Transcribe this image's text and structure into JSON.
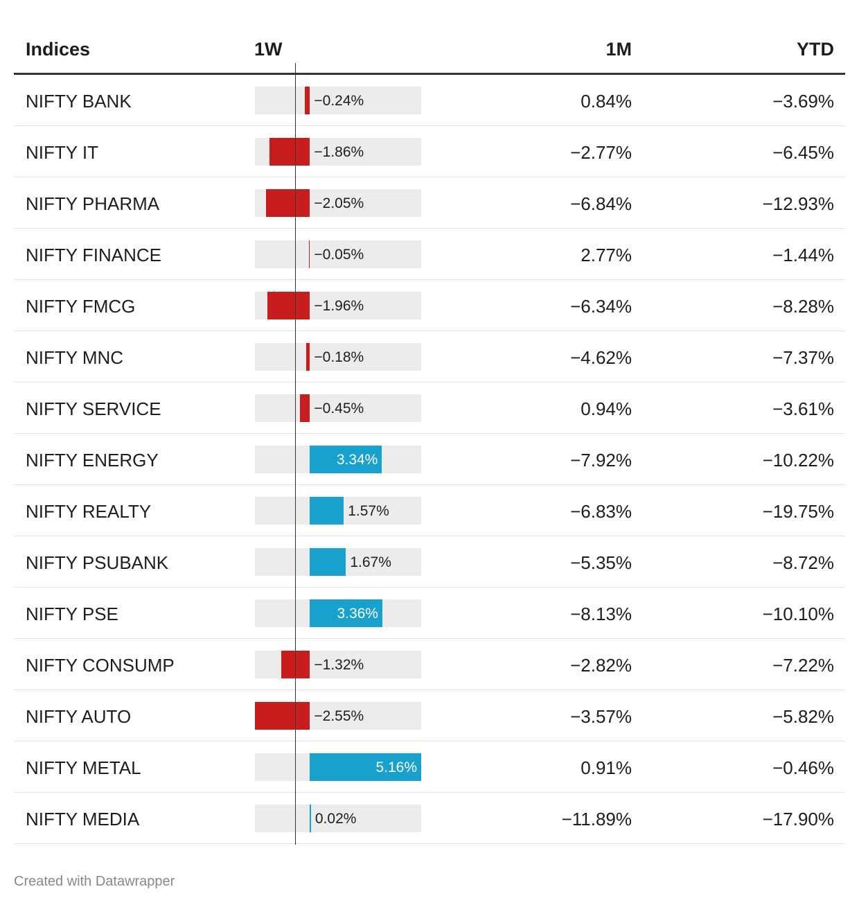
{
  "chart_data": {
    "type": "table",
    "columns": [
      "Indices",
      "1W",
      "1M",
      "YTD"
    ],
    "bar_column": "1W",
    "bar_range": [
      -2.55,
      5.16
    ],
    "colors": {
      "negative": "#c71e1d",
      "positive": "#18a1cd",
      "track": "#ececec"
    },
    "rows": [
      {
        "name": "NIFTY BANK",
        "w1": -0.24,
        "w1_label": "−0.24%",
        "m1": "0.84%",
        "ytd": "−3.69%"
      },
      {
        "name": "NIFTY IT",
        "w1": -1.86,
        "w1_label": "−1.86%",
        "m1": "−2.77%",
        "ytd": "−6.45%"
      },
      {
        "name": "NIFTY PHARMA",
        "w1": -2.05,
        "w1_label": "−2.05%",
        "m1": "−6.84%",
        "ytd": "−12.93%"
      },
      {
        "name": "NIFTY FINANCE",
        "w1": -0.05,
        "w1_label": "−0.05%",
        "m1": "2.77%",
        "ytd": "−1.44%"
      },
      {
        "name": "NIFTY FMCG",
        "w1": -1.96,
        "w1_label": "−1.96%",
        "m1": "−6.34%",
        "ytd": "−8.28%"
      },
      {
        "name": "NIFTY MNC",
        "w1": -0.18,
        "w1_label": "−0.18%",
        "m1": "−4.62%",
        "ytd": "−7.37%"
      },
      {
        "name": "NIFTY SERVICE",
        "w1": -0.45,
        "w1_label": "−0.45%",
        "m1": "0.94%",
        "ytd": "−3.61%"
      },
      {
        "name": "NIFTY ENERGY",
        "w1": 3.34,
        "w1_label": "3.34%",
        "m1": "−7.92%",
        "ytd": "−10.22%"
      },
      {
        "name": "NIFTY REALTY",
        "w1": 1.57,
        "w1_label": "1.57%",
        "m1": "−6.83%",
        "ytd": "−19.75%"
      },
      {
        "name": "NIFTY PSUBANK",
        "w1": 1.67,
        "w1_label": "1.67%",
        "m1": "−5.35%",
        "ytd": "−8.72%"
      },
      {
        "name": "NIFTY PSE",
        "w1": 3.36,
        "w1_label": "3.36%",
        "m1": "−8.13%",
        "ytd": "−10.10%"
      },
      {
        "name": "NIFTY CONSUMP",
        "w1": -1.32,
        "w1_label": "−1.32%",
        "m1": "−2.82%",
        "ytd": "−7.22%"
      },
      {
        "name": "NIFTY AUTO",
        "w1": -2.55,
        "w1_label": "−2.55%",
        "m1": "−3.57%",
        "ytd": "−5.82%"
      },
      {
        "name": "NIFTY METAL",
        "w1": 5.16,
        "w1_label": "5.16%",
        "m1": "0.91%",
        "ytd": "−0.46%"
      },
      {
        "name": "NIFTY MEDIA",
        "w1": 0.02,
        "w1_label": "0.02%",
        "m1": "−11.89%",
        "ytd": "−17.90%"
      }
    ]
  },
  "footer": {
    "credit": "Created with Datawrapper"
  }
}
